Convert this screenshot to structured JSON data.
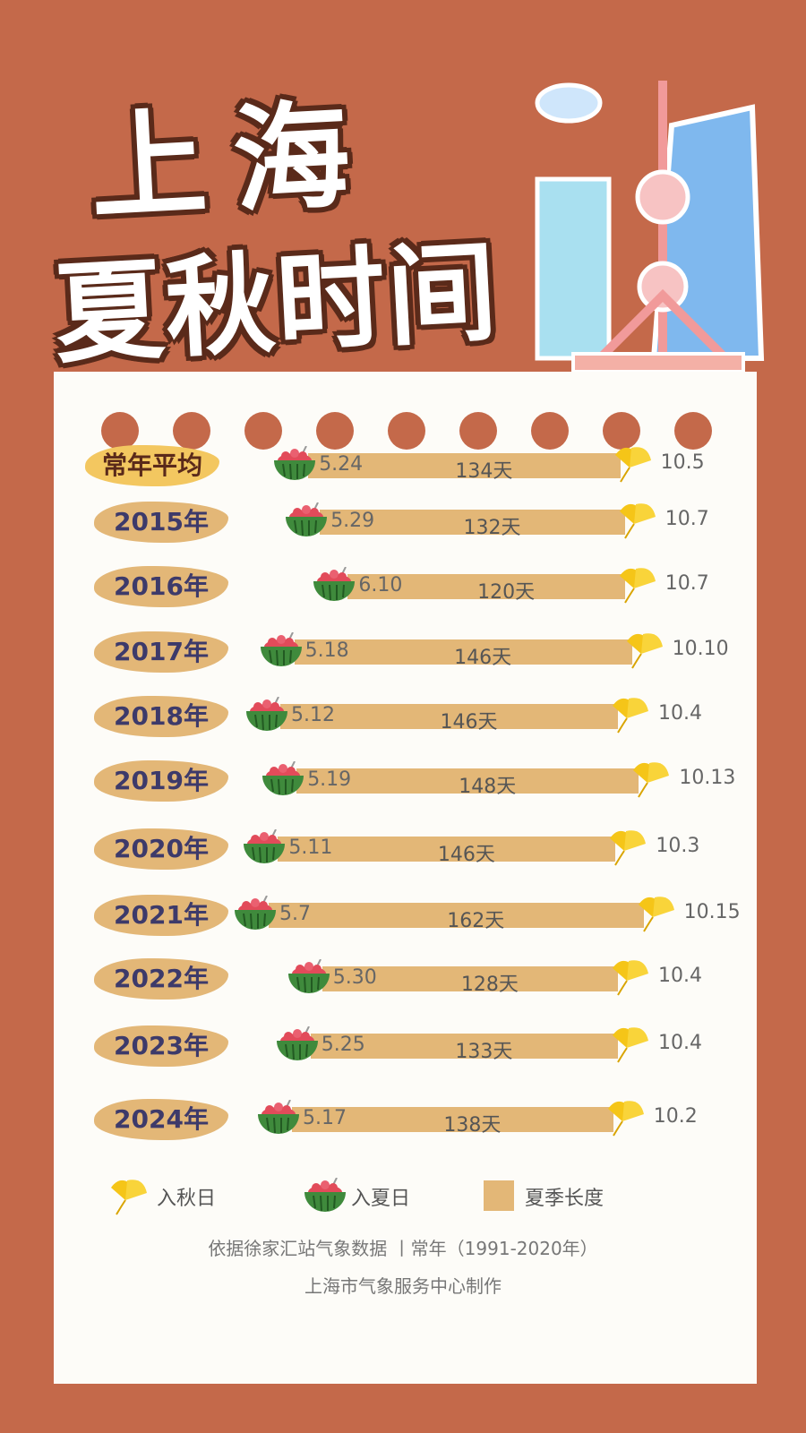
{
  "title": {
    "line1": "上海",
    "line2": "夏秋时间"
  },
  "colors": {
    "background": "#c4694a",
    "bar": "#e3b777",
    "label_text": "#3d3a6a",
    "leaf": "#f5c518",
    "melon_green": "#3f8a3c",
    "melon_red": "#e24b5a"
  },
  "chart_data": {
    "type": "range-bar",
    "categories": [
      "常年平均",
      "2015年",
      "2016年",
      "2017年",
      "2018年",
      "2019年",
      "2020年",
      "2021年",
      "2022年",
      "2023年",
      "2024年"
    ],
    "summer_start": [
      "5.24",
      "5.29",
      "6.10",
      "5.18",
      "5.12",
      "5.19",
      "5.11",
      "5.7",
      "5.30",
      "5.25",
      "5.17"
    ],
    "autumn_start": [
      "10.5",
      "10.7",
      "10.7",
      "10.10",
      "10.4",
      "10.13",
      "10.3",
      "10.15",
      "10.4",
      "10.4",
      "10.2"
    ],
    "summer_length": [
      "134天",
      "132天",
      "120天",
      "146天",
      "146天",
      "148天",
      "146天",
      "162天",
      "128天",
      "133天",
      "138天"
    ],
    "legend": {
      "autumn": "入秋日",
      "summer": "入夏日",
      "length": "夏季长度"
    }
  },
  "footer": {
    "source": "依据徐家汇站气象数据 丨常年（1991-2020年）",
    "maker": "上海市气象服务中心制作"
  }
}
